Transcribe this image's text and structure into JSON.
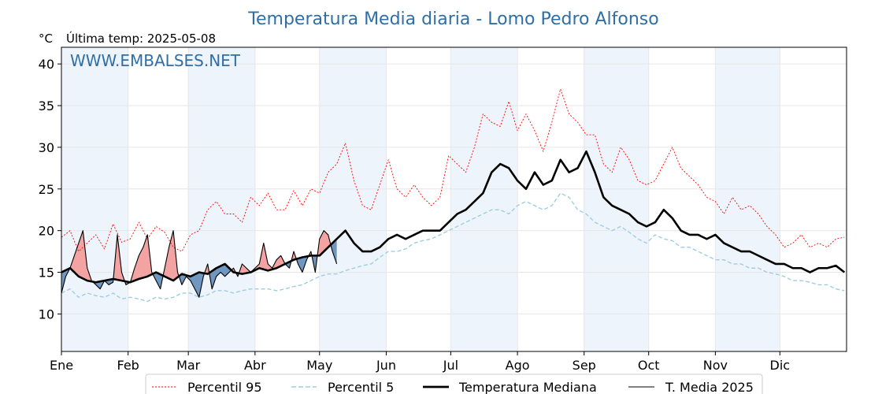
{
  "chart_data": {
    "type": "line",
    "title": "Temperatura Media diaria - Lomo Pedro Alfonso",
    "unit_label": "°C",
    "last_temp_label": "Última temp: 2025-05-08",
    "watermark": "WWW.EMBALSES.NET",
    "ylim": [
      5.5,
      42
    ],
    "yticks": [
      10,
      15,
      20,
      25,
      30,
      35,
      40
    ],
    "x_domain": [
      0,
      365
    ],
    "months": [
      "Ene",
      "Feb",
      "Mar",
      "Abr",
      "May",
      "Jun",
      "Jul",
      "Ago",
      "Sep",
      "Oct",
      "Nov",
      "Dic"
    ],
    "month_starts": [
      0,
      31,
      59,
      90,
      120,
      151,
      181,
      212,
      243,
      273,
      304,
      334
    ],
    "grid": true,
    "legend_position": "bottom",
    "colors": {
      "p95": "#ff0000",
      "p5": "#9fcde0",
      "median": "#000000",
      "current": "#000000",
      "above_fill": "#f4a3a3",
      "below_fill": "#6f97bf",
      "title": "#2f6fa6",
      "band": "#eef4fb"
    },
    "legend": [
      "Percentil 95",
      "Percentil 5",
      "Temperatura Mediana",
      "T. Media 2025"
    ],
    "series": [
      {
        "name": "Percentil 95",
        "x": [
          0,
          4,
          8,
          12,
          16,
          20,
          24,
          28,
          32,
          36,
          40,
          44,
          48,
          52,
          56,
          60,
          64,
          68,
          72,
          76,
          80,
          84,
          88,
          92,
          96,
          100,
          104,
          108,
          112,
          116,
          120,
          124,
          128,
          132,
          136,
          140,
          144,
          148,
          152,
          156,
          160,
          164,
          168,
          172,
          176,
          180,
          184,
          188,
          192,
          196,
          200,
          204,
          208,
          212,
          216,
          220,
          224,
          228,
          232,
          236,
          240,
          244,
          248,
          252,
          256,
          260,
          264,
          268,
          272,
          276,
          280,
          284,
          288,
          292,
          296,
          300,
          304,
          308,
          312,
          316,
          320,
          324,
          328,
          332,
          336,
          340,
          344,
          348,
          352,
          356,
          360,
          364
        ],
        "values": [
          19.2,
          20.0,
          17.5,
          18.5,
          19.5,
          17.8,
          20.8,
          18.6,
          19.0,
          21.0,
          19.0,
          20.5,
          19.8,
          18.0,
          17.5,
          19.5,
          20.0,
          22.5,
          23.5,
          22.0,
          22.0,
          21.0,
          24.0,
          23.0,
          24.5,
          22.5,
          22.5,
          24.8,
          23.0,
          25.0,
          24.5,
          27.0,
          28.0,
          30.5,
          26.0,
          23.0,
          22.5,
          25.5,
          28.5,
          25.0,
          24.0,
          25.5,
          24.0,
          23.0,
          24.0,
          29.0,
          28.0,
          27.0,
          30.0,
          34.0,
          33.0,
          32.5,
          35.5,
          32.0,
          34.0,
          32.0,
          29.5,
          33.0,
          37.0,
          34.0,
          33.0,
          31.5,
          31.5,
          28.0,
          27.0,
          30.0,
          28.5,
          26.0,
          25.5,
          26.0,
          28.0,
          30.0,
          27.5,
          26.5,
          25.5,
          24.0,
          23.5,
          22.0,
          24.0,
          22.5,
          23.0,
          22.0,
          20.5,
          19.5,
          18.0,
          18.5,
          19.5,
          18.0,
          18.5,
          18.0,
          19.0,
          19.2
        ]
      },
      {
        "name": "Percentil 5",
        "x": [
          0,
          4,
          8,
          12,
          16,
          20,
          24,
          28,
          32,
          36,
          40,
          44,
          48,
          52,
          56,
          60,
          64,
          68,
          72,
          76,
          80,
          84,
          88,
          92,
          96,
          100,
          104,
          108,
          112,
          116,
          120,
          124,
          128,
          132,
          136,
          140,
          144,
          148,
          152,
          156,
          160,
          164,
          168,
          172,
          176,
          180,
          184,
          188,
          192,
          196,
          200,
          204,
          208,
          212,
          216,
          220,
          224,
          228,
          232,
          236,
          240,
          244,
          248,
          252,
          256,
          260,
          264,
          268,
          272,
          276,
          280,
          284,
          288,
          292,
          296,
          300,
          304,
          308,
          312,
          316,
          320,
          324,
          328,
          332,
          336,
          340,
          344,
          348,
          352,
          356,
          360,
          364
        ],
        "values": [
          12.5,
          13.0,
          12.0,
          12.5,
          12.2,
          12.0,
          12.5,
          11.8,
          12.0,
          11.8,
          11.5,
          12.0,
          11.8,
          12.0,
          12.5,
          12.5,
          12.0,
          12.3,
          12.8,
          12.8,
          12.5,
          12.8,
          13.0,
          13.0,
          13.0,
          12.8,
          13.0,
          13.3,
          13.5,
          14.0,
          14.5,
          14.8,
          14.8,
          15.2,
          15.5,
          15.8,
          16.0,
          16.8,
          17.5,
          17.5,
          17.8,
          18.5,
          18.8,
          19.0,
          19.5,
          20.0,
          20.5,
          21.0,
          21.5,
          22.0,
          22.5,
          22.5,
          22.0,
          23.0,
          23.5,
          23.0,
          22.5,
          23.0,
          24.5,
          24.0,
          22.5,
          22.0,
          21.0,
          20.5,
          20.0,
          20.5,
          19.8,
          19.0,
          18.5,
          19.5,
          19.0,
          18.8,
          18.0,
          18.0,
          17.5,
          17.0,
          16.5,
          16.5,
          16.0,
          16.0,
          15.5,
          15.5,
          15.0,
          14.8,
          14.5,
          14.0,
          14.0,
          13.8,
          13.5,
          13.5,
          13.0,
          12.8
        ]
      },
      {
        "name": "Temperatura Mediana",
        "x": [
          0,
          4,
          8,
          12,
          16,
          20,
          24,
          28,
          32,
          36,
          40,
          44,
          48,
          52,
          56,
          60,
          64,
          68,
          72,
          76,
          80,
          84,
          88,
          92,
          96,
          100,
          104,
          108,
          112,
          116,
          120,
          124,
          128,
          132,
          136,
          140,
          144,
          148,
          152,
          156,
          160,
          164,
          168,
          172,
          176,
          180,
          184,
          188,
          192,
          196,
          200,
          204,
          208,
          212,
          216,
          220,
          224,
          228,
          232,
          236,
          240,
          244,
          248,
          252,
          256,
          260,
          264,
          268,
          272,
          276,
          280,
          284,
          288,
          292,
          296,
          300,
          304,
          308,
          312,
          316,
          320,
          324,
          328,
          332,
          336,
          340,
          344,
          348,
          352,
          356,
          360,
          364
        ],
        "values": [
          15.0,
          15.5,
          14.5,
          14.0,
          13.8,
          14.0,
          14.2,
          14.0,
          13.8,
          14.2,
          14.5,
          15.0,
          14.5,
          14.0,
          14.8,
          14.5,
          15.0,
          14.8,
          15.5,
          16.0,
          15.0,
          14.8,
          15.0,
          15.5,
          15.2,
          15.5,
          16.0,
          16.5,
          16.8,
          17.0,
          17.0,
          18.0,
          19.0,
          20.0,
          18.5,
          17.5,
          17.5,
          18.0,
          19.0,
          19.5,
          19.0,
          19.5,
          20.0,
          20.0,
          20.0,
          21.0,
          22.0,
          22.5,
          23.5,
          24.5,
          27.0,
          28.0,
          27.5,
          26.0,
          25.0,
          27.0,
          25.5,
          26.0,
          28.5,
          27.0,
          27.5,
          29.5,
          27.0,
          24.0,
          23.0,
          22.5,
          22.0,
          21.0,
          20.5,
          21.0,
          22.5,
          21.5,
          20.0,
          19.5,
          19.5,
          19.0,
          19.5,
          18.5,
          18.0,
          17.5,
          17.5,
          17.0,
          16.5,
          16.0,
          16.0,
          15.5,
          15.5,
          15.0,
          15.5,
          15.5,
          15.8,
          15.0
        ]
      },
      {
        "name": "T. Media 2025",
        "x": [
          0,
          2,
          4,
          6,
          8,
          10,
          12,
          14,
          16,
          18,
          20,
          22,
          24,
          26,
          28,
          30,
          32,
          34,
          36,
          38,
          40,
          42,
          44,
          46,
          48,
          50,
          52,
          54,
          56,
          58,
          60,
          62,
          64,
          66,
          68,
          70,
          72,
          74,
          76,
          78,
          80,
          82,
          84,
          86,
          88,
          90,
          92,
          94,
          96,
          98,
          100,
          102,
          104,
          106,
          108,
          110,
          112,
          114,
          116,
          118,
          120,
          122,
          124,
          126,
          128
        ],
        "values": [
          12.5,
          14.5,
          15.5,
          17.0,
          18.5,
          20.0,
          15.5,
          14.0,
          13.5,
          13.0,
          14.0,
          13.5,
          13.8,
          19.5,
          15.0,
          13.5,
          13.8,
          15.5,
          17.0,
          18.0,
          19.5,
          15.0,
          14.0,
          13.0,
          15.5,
          18.0,
          20.0,
          15.0,
          13.5,
          14.5,
          14.0,
          13.0,
          12.0,
          14.5,
          16.0,
          13.0,
          14.5,
          15.0,
          14.5,
          15.0,
          15.5,
          14.5,
          16.0,
          15.5,
          15.0,
          15.5,
          16.0,
          18.5,
          16.0,
          15.5,
          16.5,
          17.0,
          16.0,
          15.5,
          17.5,
          16.0,
          15.0,
          16.5,
          17.5,
          15.0,
          19.0,
          20.0,
          19.5,
          17.5,
          16.0
        ]
      }
    ]
  }
}
